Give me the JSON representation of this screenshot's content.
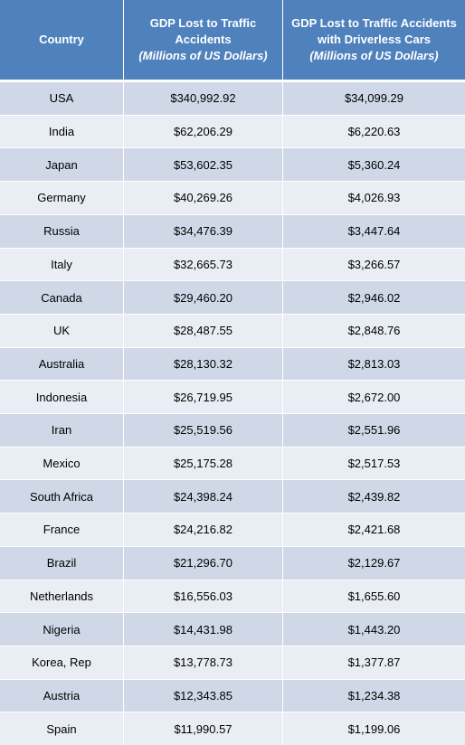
{
  "table": {
    "header": [
      {
        "title": "Country"
      },
      {
        "title": "GDP Lost to Traffic Accidents",
        "unit": "(Millions of US Dollars)"
      },
      {
        "title": "GDP Lost to Traffic Accidents with Driverless Cars",
        "unit": "(Millions of US Dollars)"
      }
    ],
    "rows": [
      [
        "USA",
        "$340,992.92",
        "$34,099.29"
      ],
      [
        "India",
        "$62,206.29",
        "$6,220.63"
      ],
      [
        "Japan",
        "$53,602.35",
        "$5,360.24"
      ],
      [
        "Germany",
        "$40,269.26",
        "$4,026.93"
      ],
      [
        "Russia",
        "$34,476.39",
        "$3,447.64"
      ],
      [
        "Italy",
        "$32,665.73",
        "$3,266.57"
      ],
      [
        "Canada",
        "$29,460.20",
        "$2,946.02"
      ],
      [
        "UK",
        "$28,487.55",
        "$2,848.76"
      ],
      [
        "Australia",
        "$28,130.32",
        "$2,813.03"
      ],
      [
        "Indonesia",
        "$26,719.95",
        "$2,672.00"
      ],
      [
        "Iran",
        "$25,519.56",
        "$2,551.96"
      ],
      [
        "Mexico",
        "$25,175.28",
        "$2,517.53"
      ],
      [
        "South Africa",
        "$24,398.24",
        "$2,439.82"
      ],
      [
        "France",
        "$24,216.82",
        "$2,421.68"
      ],
      [
        "Brazil",
        "$21,296.70",
        "$2,129.67"
      ],
      [
        "Netherlands",
        "$16,556.03",
        "$1,655.60"
      ],
      [
        "Nigeria",
        "$14,431.98",
        "$1,443.20"
      ],
      [
        "Korea, Rep",
        "$13,778.73",
        "$1,377.87"
      ],
      [
        "Austria",
        "$12,343.85",
        "$1,234.38"
      ],
      [
        "Spain",
        "$11,990.57",
        "$1,199.06"
      ]
    ]
  }
}
